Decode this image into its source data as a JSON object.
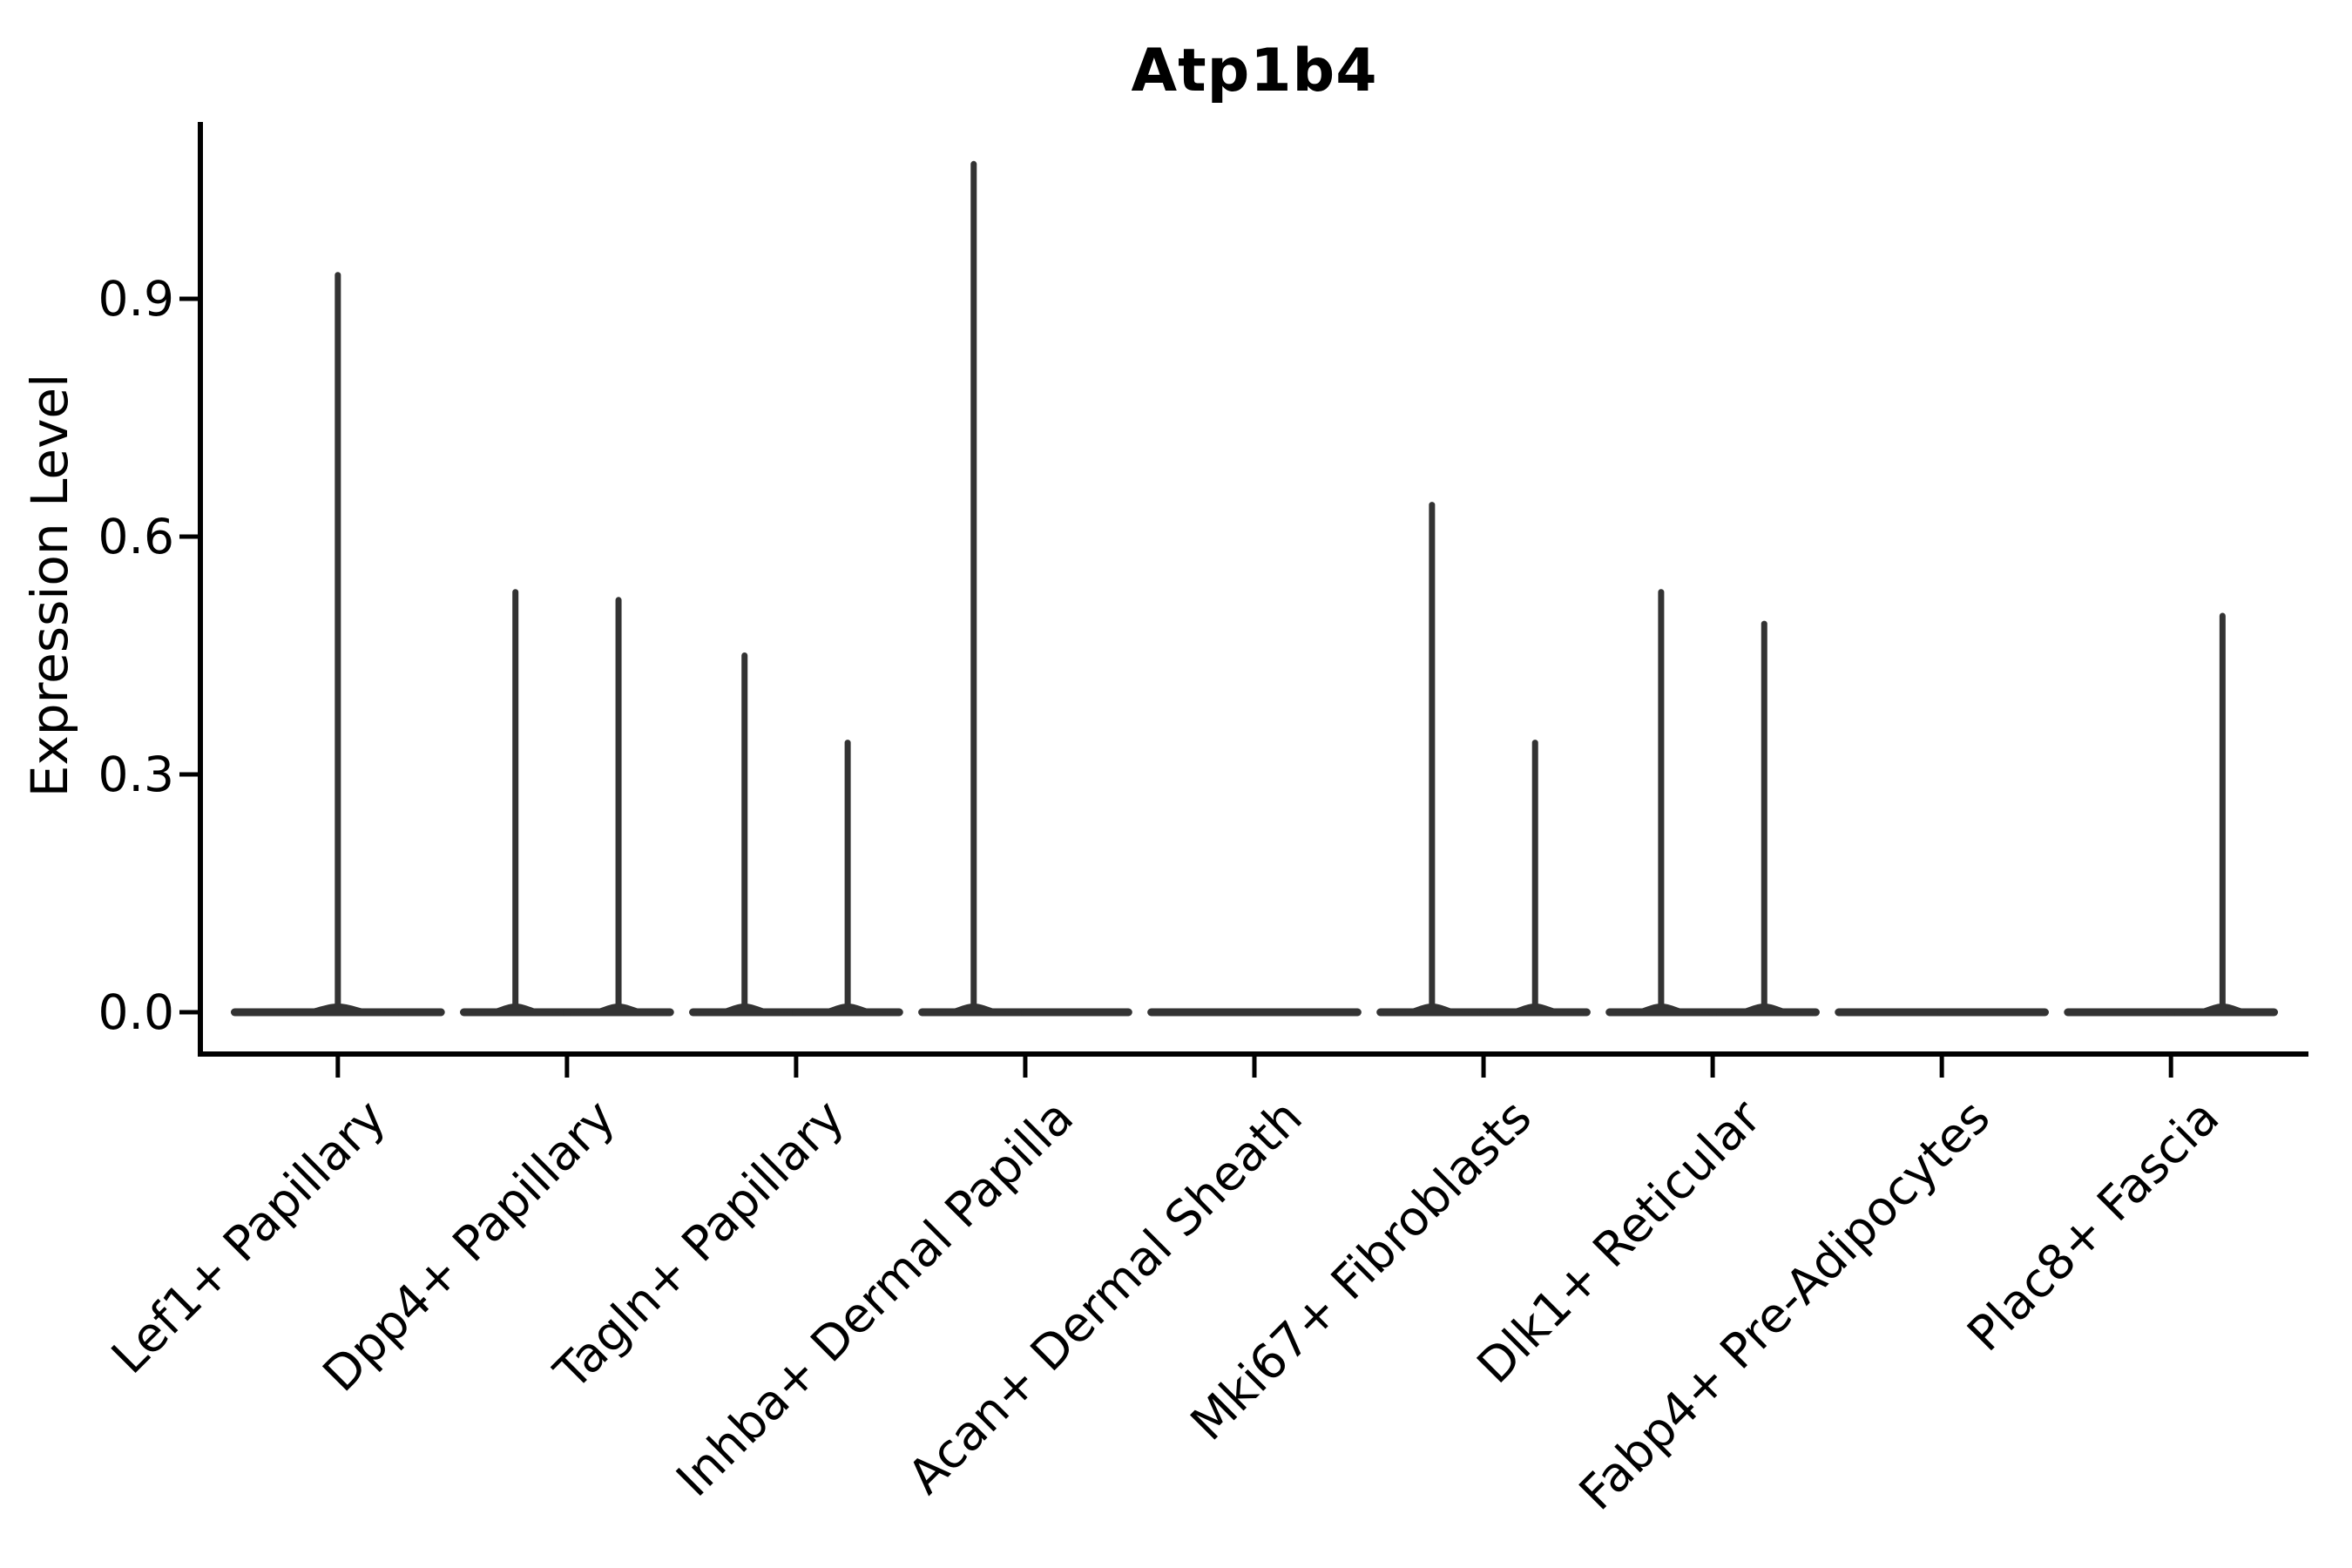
{
  "chart_data": {
    "type": "violin",
    "title": "Atp1b4",
    "ylabel": "Expression Level",
    "xlabel": "",
    "yticks": [
      "0.0",
      "0.3",
      "0.6",
      "0.9"
    ],
    "ytick_values": [
      0.0,
      0.3,
      0.6,
      0.9
    ],
    "ylim": [
      -0.053,
      1.122
    ],
    "grid": false,
    "legend": null,
    "baseline_value": 0.0,
    "categories": [
      "Lef1+ Papillary",
      "Dpp4+ Papillary",
      "Tagln+ Papillary",
      "Inhba+ Dermal Papilla",
      "Acan+ Dermal Sheath",
      "Mki67+ Fibroblasts",
      "Dlk1+ Reticular",
      "Fabp4+ Pre-Adipocytes",
      "Plac8+ Fascia"
    ],
    "violins": [
      {
        "category": "Lef1+ Papillary",
        "parts": [
          {
            "span": "full",
            "peak": 0.93
          }
        ]
      },
      {
        "category": "Dpp4+ Papillary",
        "parts": [
          {
            "span": "left",
            "peak": 0.53
          },
          {
            "span": "right",
            "peak": 0.52
          }
        ]
      },
      {
        "category": "Tagln+ Papillary",
        "parts": [
          {
            "span": "left",
            "peak": 0.45
          },
          {
            "span": "right",
            "peak": 0.34
          }
        ]
      },
      {
        "category": "Inhba+ Dermal Papilla",
        "parts": [
          {
            "span": "left",
            "peak": 1.07
          },
          {
            "span": "right",
            "peak": 0.0
          }
        ]
      },
      {
        "category": "Acan+ Dermal Sheath",
        "parts": [
          {
            "span": "left",
            "peak": 0.0
          },
          {
            "span": "right",
            "peak": 0.0
          }
        ]
      },
      {
        "category": "Mki67+ Fibroblasts",
        "parts": [
          {
            "span": "left",
            "peak": 0.64
          },
          {
            "span": "right",
            "peak": 0.34
          }
        ]
      },
      {
        "category": "Dlk1+ Reticular",
        "parts": [
          {
            "span": "left",
            "peak": 0.53
          },
          {
            "span": "right",
            "peak": 0.49
          }
        ]
      },
      {
        "category": "Fabp4+ Pre-Adipocytes",
        "parts": [
          {
            "span": "left",
            "peak": 0.0
          },
          {
            "span": "right",
            "peak": 0.0
          }
        ]
      },
      {
        "category": "Plac8+ Fascia",
        "parts": [
          {
            "span": "left",
            "peak": 0.0
          },
          {
            "span": "right",
            "peak": 0.5
          }
        ]
      }
    ],
    "colors": {
      "violin": "#333333",
      "axis": "#000000",
      "text": "#000000",
      "background": "#ffffff"
    }
  }
}
